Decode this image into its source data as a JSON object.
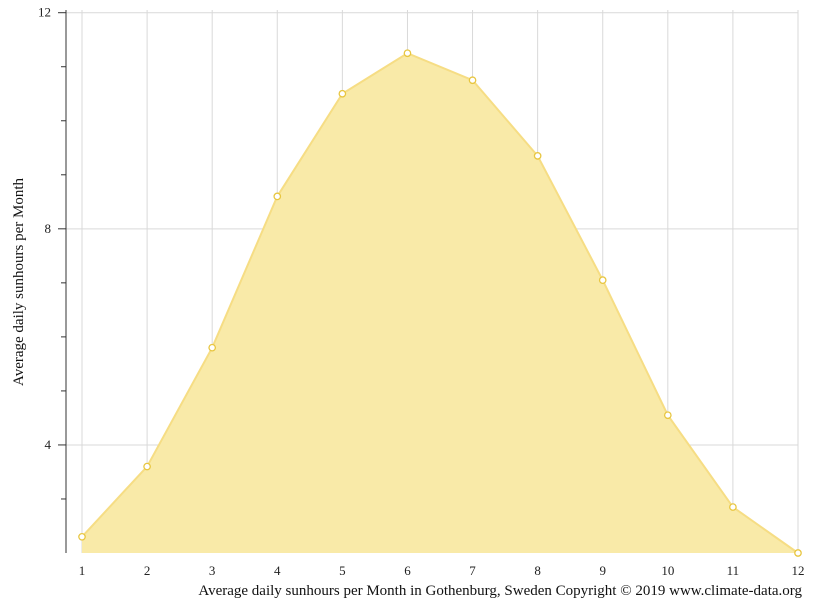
{
  "chart_data": {
    "type": "area",
    "title": "",
    "xlabel": "",
    "ylabel": "Average daily sunhours per Month",
    "caption": "Average daily sunhours per Month in Gothenburg, Sweden Copyright © 2019 www.climate-data.org",
    "x": [
      1,
      2,
      3,
      4,
      5,
      6,
      7,
      8,
      9,
      10,
      11,
      12
    ],
    "x_tick_labels": [
      "1",
      "2",
      "3",
      "4",
      "5",
      "6",
      "7",
      "8",
      "9",
      "10",
      "11",
      "12"
    ],
    "y_tick_labels": [
      "4",
      "8",
      "12"
    ],
    "y_ticks_labeled": [
      4,
      8,
      12
    ],
    "y_ticks_minor": [
      3,
      5,
      6,
      7,
      9,
      10,
      11
    ],
    "series": [
      {
        "values": [
          2.3,
          3.6,
          5.8,
          8.6,
          10.5,
          11.25,
          10.75,
          9.35,
          7.05,
          4.55,
          2.85,
          2.0
        ]
      }
    ],
    "ylim": [
      2,
      12.05
    ],
    "xlim": [
      1,
      12
    ],
    "grid": true,
    "legend": "none",
    "colors": {
      "fill": "#f9eaa8",
      "line": "#f6dd84",
      "marker_stroke": "#e8c640",
      "grid": "#d9d9d9",
      "axis": "#333333"
    }
  }
}
